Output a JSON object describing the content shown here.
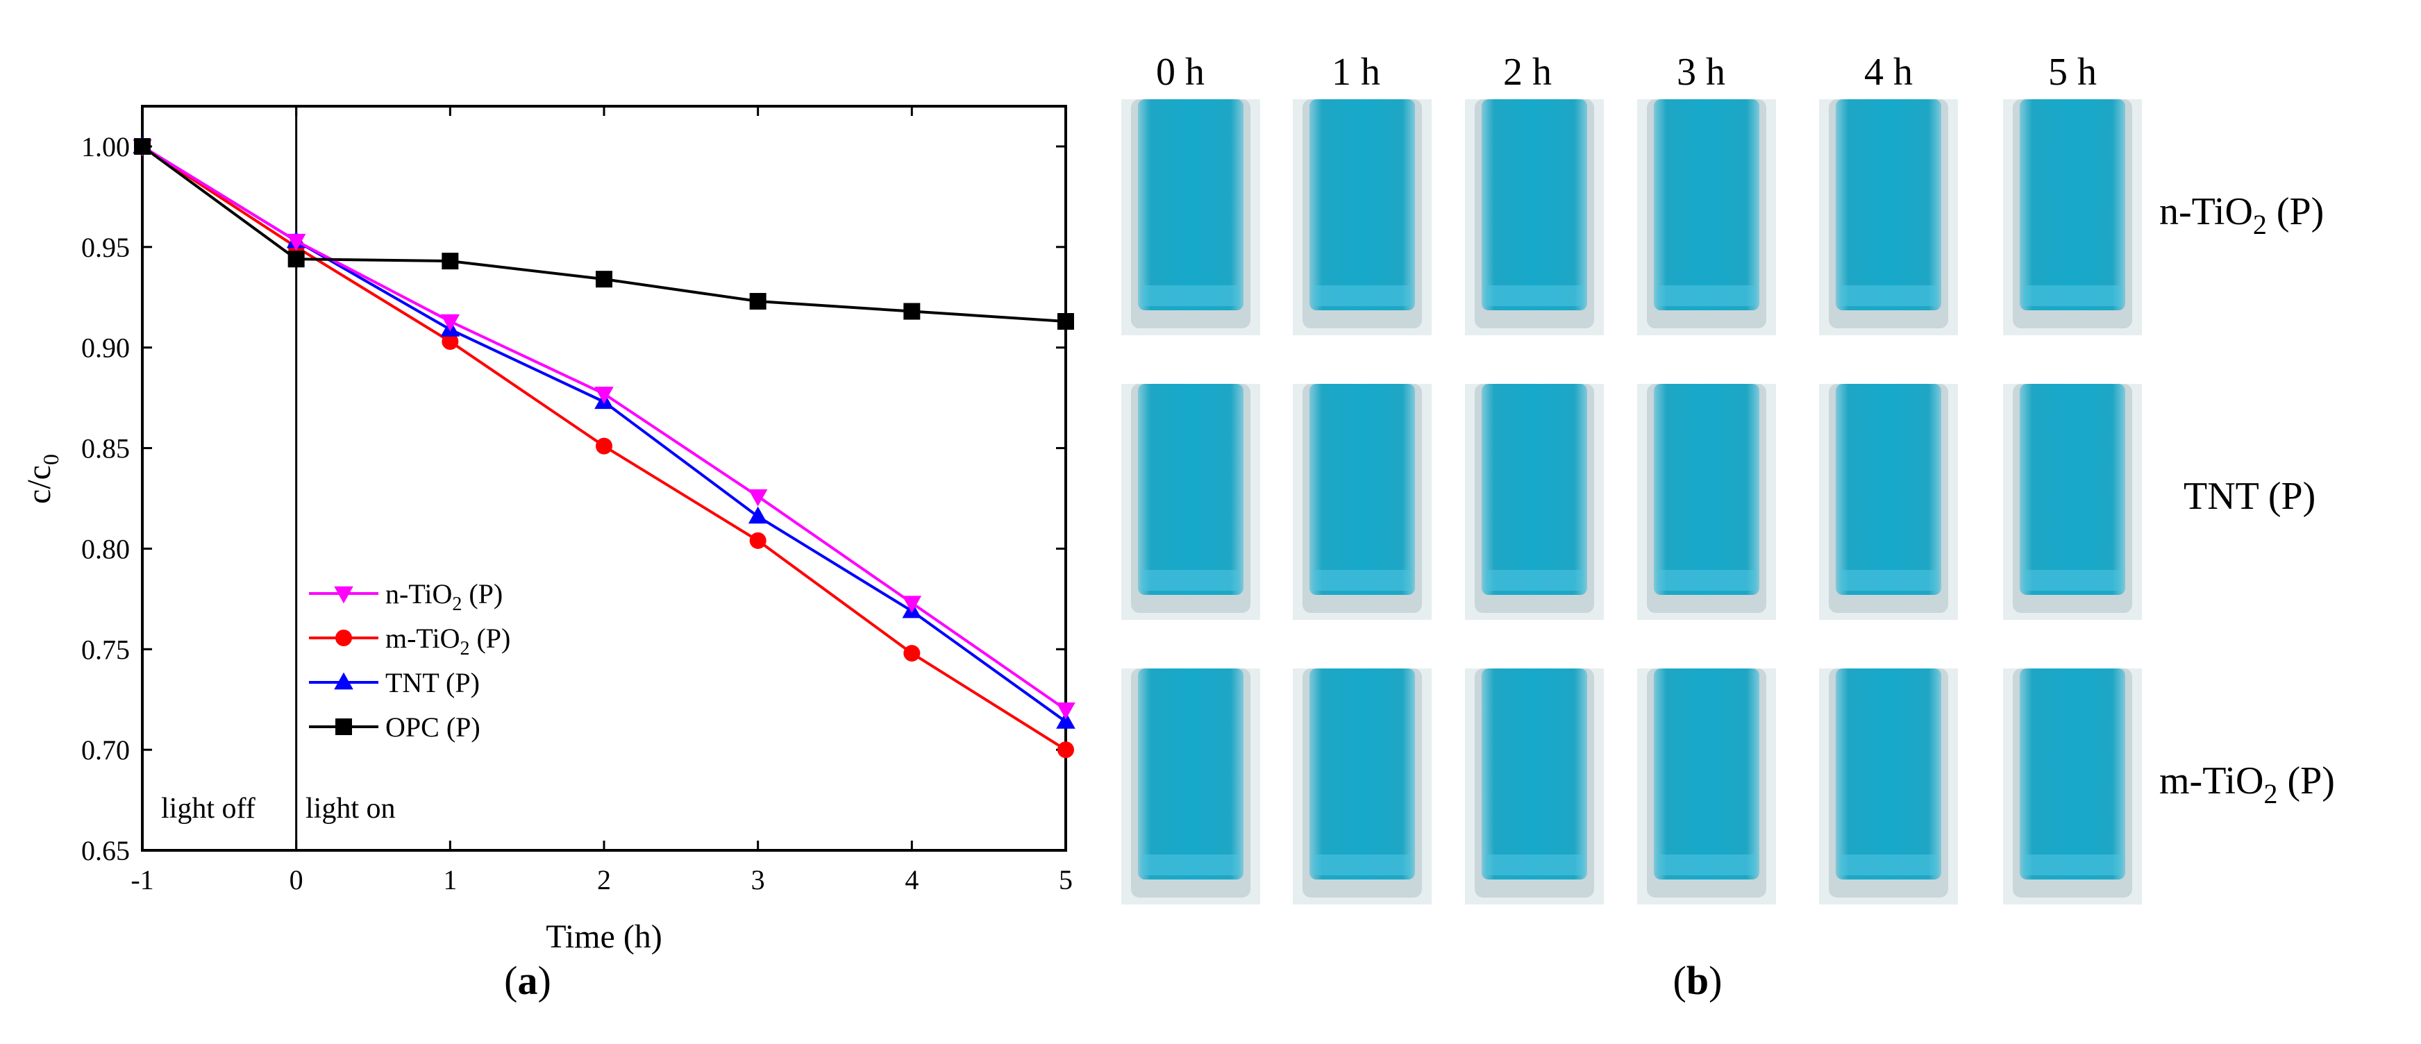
{
  "chart_data": {
    "type": "line",
    "xlabel": "Time (h)",
    "ylabel_main": "c/c",
    "ylabel_sub": "0",
    "xlim": [
      -1,
      5
    ],
    "ylim": [
      0.65,
      1.02
    ],
    "xticks": [
      -1,
      0,
      1,
      2,
      3,
      4,
      5
    ],
    "yticks": [
      0.65,
      0.7,
      0.75,
      0.8,
      0.85,
      0.9,
      0.95,
      1.0
    ],
    "grid": false,
    "legend_position": "lower-left",
    "annotations": [
      "light off",
      "light on"
    ],
    "panel_label": "a",
    "series": [
      {
        "name_main": "n-TiO",
        "name_sub": "2",
        "name_tail": " (P)",
        "color": "#ff00ff",
        "marker": "triangle-down",
        "x": [
          -1,
          0,
          1,
          2,
          3,
          4,
          5
        ],
        "y": [
          1.0,
          0.953,
          0.913,
          0.877,
          0.826,
          0.773,
          0.72
        ]
      },
      {
        "name_main": "m-TiO",
        "name_sub": "2",
        "name_tail": " (P)",
        "color": "#ff0000",
        "marker": "circle",
        "x": [
          -1,
          0,
          1,
          2,
          3,
          4,
          5
        ],
        "y": [
          1.0,
          0.95,
          0.903,
          0.851,
          0.804,
          0.748,
          0.7
        ]
      },
      {
        "name_main": "TNT",
        "name_sub": "",
        "name_tail": " (P)",
        "color": "#0000ff",
        "marker": "triangle-up",
        "x": [
          -1,
          0,
          1,
          2,
          3,
          4,
          5
        ],
        "y": [
          1.0,
          0.953,
          0.909,
          0.873,
          0.816,
          0.769,
          0.714
        ]
      },
      {
        "name_main": "OPC",
        "name_sub": "",
        "name_tail": " (P)",
        "color": "#000000",
        "marker": "square",
        "x": [
          -1,
          0,
          1,
          2,
          3,
          4,
          5
        ],
        "y": [
          1.0,
          0.944,
          0.943,
          0.934,
          0.923,
          0.918,
          0.913
        ]
      }
    ]
  },
  "photo_panel": {
    "panel_label": "b",
    "time_labels": [
      "0 h",
      "1 h",
      "2 h",
      "3 h",
      "4 h",
      "5 h"
    ],
    "rows": [
      {
        "main": "n-TiO",
        "sub": "2",
        "tail": " (P)"
      },
      {
        "main": "TNT",
        "sub": "",
        "tail": " (P)"
      },
      {
        "main": "m-TiO",
        "sub": "2",
        "tail": " (P)"
      }
    ],
    "colors": {
      "liquid": "#1fb0cf",
      "liquid_dark": "#1a9fbd",
      "glass": "#c9d6da"
    }
  }
}
